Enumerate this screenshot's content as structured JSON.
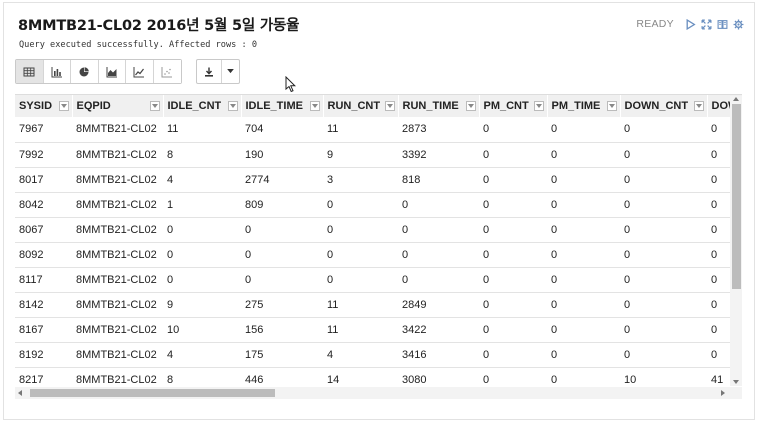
{
  "header": {
    "title": "8MMTB21-CL02 2016년 5월 5일 가동율",
    "status_text": "Query executed successfully. Affected rows : 0",
    "state_label": "READY",
    "icons": [
      "play-icon",
      "expand-icon",
      "book-icon",
      "gear-icon"
    ]
  },
  "toolbar": {
    "view_buttons": [
      "table-icon",
      "bar-chart-icon",
      "pie-chart-icon",
      "area-chart-icon",
      "line-chart-icon",
      "scatter-chart-icon"
    ],
    "active_view": "table-icon",
    "download_icon": "download-icon",
    "dropdown_icon": "caret-down-icon"
  },
  "table": {
    "columns": [
      "SYSID",
      "EQPID",
      "IDLE_CNT",
      "IDLE_TIME",
      "RUN_CNT",
      "RUN_TIME",
      "PM_CNT",
      "PM_TIME",
      "DOWN_CNT",
      "DOWN"
    ],
    "rows": [
      [
        "7967",
        "8MMTB21-CL02",
        "11",
        "704",
        "11",
        "2873",
        "0",
        "0",
        "0",
        "0"
      ],
      [
        "7992",
        "8MMTB21-CL02",
        "8",
        "190",
        "9",
        "3392",
        "0",
        "0",
        "0",
        "0"
      ],
      [
        "8017",
        "8MMTB21-CL02",
        "4",
        "2774",
        "3",
        "818",
        "0",
        "0",
        "0",
        "0"
      ],
      [
        "8042",
        "8MMTB21-CL02",
        "1",
        "809",
        "0",
        "0",
        "0",
        "0",
        "0",
        "0"
      ],
      [
        "8067",
        "8MMTB21-CL02",
        "0",
        "0",
        "0",
        "0",
        "0",
        "0",
        "0",
        "0"
      ],
      [
        "8092",
        "8MMTB21-CL02",
        "0",
        "0",
        "0",
        "0",
        "0",
        "0",
        "0",
        "0"
      ],
      [
        "8117",
        "8MMTB21-CL02",
        "0",
        "0",
        "0",
        "0",
        "0",
        "0",
        "0",
        "0"
      ],
      [
        "8142",
        "8MMTB21-CL02",
        "9",
        "275",
        "11",
        "2849",
        "0",
        "0",
        "0",
        "0"
      ],
      [
        "8167",
        "8MMTB21-CL02",
        "10",
        "156",
        "11",
        "3422",
        "0",
        "0",
        "0",
        "0"
      ],
      [
        "8192",
        "8MMTB21-CL02",
        "4",
        "175",
        "4",
        "3416",
        "0",
        "0",
        "0",
        "0"
      ],
      [
        "8217",
        "8MMTB21-CL02",
        "8",
        "446",
        "14",
        "3080",
        "0",
        "0",
        "10",
        "41"
      ]
    ]
  },
  "colors": {
    "accent": "#6a8fc0",
    "header_bg": "#f0f0f0",
    "scrollbar_thumb": "#bcbcbc"
  }
}
